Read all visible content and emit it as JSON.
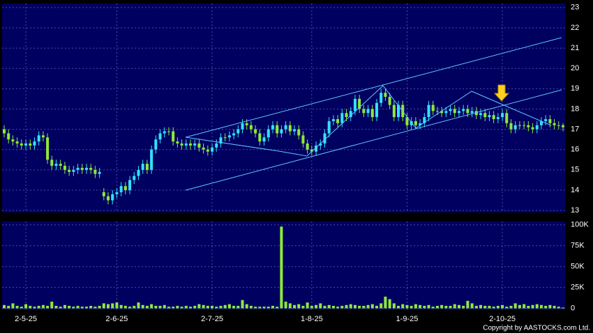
{
  "chart_data": {
    "type": "candlestick",
    "categories": [
      null,
      null,
      null,
      null,
      null,
      "2-5-25",
      null,
      null,
      null,
      null,
      null,
      null,
      null,
      null,
      null,
      null,
      null,
      null,
      null,
      null,
      null,
      null,
      null,
      null,
      null,
      null,
      "2-6-25",
      null,
      null,
      null,
      null,
      null,
      null,
      null,
      null,
      null,
      null,
      null,
      null,
      null,
      null,
      null,
      null,
      null,
      null,
      null,
      null,
      null,
      "2-7-25",
      null,
      null,
      null,
      null,
      null,
      null,
      null,
      null,
      null,
      null,
      null,
      null,
      null,
      null,
      null,
      null,
      null,
      null,
      null,
      null,
      null,
      null,
      "1-8-25",
      null,
      null,
      null,
      null,
      null,
      null,
      null,
      null,
      null,
      null,
      null,
      null,
      null,
      null,
      null,
      null,
      null,
      null,
      null,
      null,
      null,
      "1-9-25",
      null,
      null,
      null,
      null,
      null,
      null,
      null,
      null,
      null,
      null,
      null,
      null,
      null,
      null,
      null,
      null,
      null,
      null,
      null,
      null,
      null,
      "2-10-25",
      null,
      null,
      null,
      null,
      null,
      null,
      null,
      null,
      null,
      null,
      null,
      null,
      null,
      null
    ],
    "open": [
      17.0,
      16.8,
      16.5,
      16.4,
      16.3,
      16.2,
      16.3,
      16.2,
      16.4,
      16.7,
      16.6,
      15.5,
      15.2,
      15.3,
      15.2,
      15.0,
      14.9,
      15.0,
      15.1,
      15.0,
      15.1,
      15.0,
      14.8,
      13.9,
      13.7,
      13.5,
      13.8,
      13.9,
      14.2,
      14.0,
      14.5,
      14.7,
      15.0,
      15.3,
      15.0,
      16.0,
      16.5,
      16.8,
      16.9,
      16.9,
      16.4,
      16.3,
      16.2,
      16.3,
      16.2,
      16.3,
      16.1,
      16.0,
      15.9,
      16.1,
      16.3,
      16.6,
      16.6,
      16.7,
      16.8,
      17.0,
      17.3,
      17.2,
      17.0,
      16.8,
      16.4,
      16.6,
      17.0,
      17.2,
      16.8,
      17.0,
      17.2,
      16.9,
      17.0,
      16.7,
      16.3,
      16.0,
      15.9,
      16.2,
      16.3,
      16.8,
      17.4,
      17.5,
      17.3,
      17.8,
      17.6,
      17.9,
      18.5,
      18.0,
      17.8,
      18.0,
      17.6,
      18.3,
      18.8,
      18.6,
      18.2,
      17.6,
      18.2,
      17.6,
      17.2,
      17.4,
      17.2,
      17.3,
      17.6,
      18.2,
      17.9,
      17.9,
      17.8,
      17.9,
      18.0,
      17.8,
      17.9,
      18.0,
      17.8,
      17.9,
      17.7,
      17.8,
      17.6,
      17.7,
      17.5,
      17.6,
      17.8,
      17.3,
      17.0,
      17.2,
      17.2,
      17.2,
      17.1,
      17.0,
      17.2,
      17.4,
      17.5,
      17.3,
      17.2,
      17.2
    ],
    "high": [
      17.2,
      17.0,
      16.7,
      16.6,
      16.5,
      16.5,
      16.5,
      16.6,
      16.9,
      16.9,
      16.8,
      15.7,
      15.5,
      15.5,
      15.4,
      15.2,
      15.2,
      15.3,
      15.3,
      15.3,
      15.3,
      15.2,
      15.1,
      14.1,
      13.9,
      14.0,
      14.1,
      14.4,
      14.4,
      14.7,
      14.9,
      15.2,
      15.5,
      15.5,
      16.2,
      16.7,
      17.0,
      17.1,
      17.1,
      17.1,
      16.6,
      16.5,
      16.5,
      16.5,
      16.5,
      16.5,
      16.3,
      16.2,
      16.3,
      16.5,
      16.8,
      16.8,
      16.9,
      17.0,
      17.2,
      17.5,
      17.5,
      17.4,
      17.2,
      17.0,
      16.8,
      17.2,
      17.4,
      17.4,
      17.2,
      17.4,
      17.4,
      17.2,
      17.2,
      16.9,
      16.5,
      16.2,
      16.4,
      16.5,
      17.0,
      17.6,
      17.7,
      17.7,
      18.0,
      18.0,
      18.1,
      18.7,
      18.7,
      18.2,
      18.2,
      18.2,
      18.5,
      19.0,
      19.0,
      18.8,
      18.4,
      18.4,
      18.4,
      17.8,
      17.6,
      17.6,
      17.5,
      17.8,
      18.4,
      18.4,
      18.1,
      18.1,
      18.1,
      18.2,
      18.2,
      18.1,
      18.2,
      18.2,
      18.1,
      18.1,
      18.0,
      18.0,
      17.9,
      17.9,
      17.8,
      18.0,
      18.0,
      17.5,
      17.4,
      17.4,
      17.4,
      17.4,
      17.3,
      17.4,
      17.6,
      17.7,
      17.7,
      17.5,
      17.4,
      17.3
    ],
    "low": [
      16.6,
      16.3,
      16.2,
      16.1,
      16.0,
      16.0,
      16.0,
      16.0,
      16.2,
      16.4,
      15.3,
      15.0,
      15.0,
      15.0,
      14.8,
      14.7,
      14.7,
      14.8,
      14.8,
      14.8,
      14.8,
      14.6,
      14.6,
      13.5,
      13.3,
      13.3,
      13.6,
      13.7,
      13.8,
      13.8,
      14.3,
      14.5,
      14.8,
      14.8,
      14.8,
      15.8,
      16.3,
      16.6,
      16.7,
      16.2,
      16.1,
      16.0,
      16.0,
      16.0,
      16.0,
      15.9,
      15.8,
      15.7,
      15.7,
      15.9,
      16.1,
      16.4,
      16.4,
      16.5,
      16.6,
      16.8,
      17.0,
      16.8,
      16.6,
      16.2,
      16.2,
      16.4,
      16.8,
      16.6,
      16.6,
      16.8,
      16.7,
      16.7,
      16.5,
      16.1,
      15.8,
      15.7,
      15.7,
      16.0,
      16.1,
      16.6,
      17.2,
      17.1,
      17.1,
      17.4,
      17.4,
      17.7,
      17.8,
      17.6,
      17.6,
      17.4,
      17.4,
      18.1,
      18.4,
      18.0,
      17.4,
      17.4,
      17.4,
      17.0,
      17.0,
      17.0,
      17.0,
      17.1,
      17.4,
      17.7,
      17.7,
      17.6,
      17.6,
      17.7,
      17.6,
      17.6,
      17.7,
      17.6,
      17.6,
      17.5,
      17.5,
      17.4,
      17.4,
      17.3,
      17.3,
      17.4,
      17.1,
      16.8,
      16.8,
      17.0,
      17.0,
      16.9,
      16.8,
      16.8,
      17.0,
      17.2,
      17.1,
      17.0,
      17.0,
      16.9
    ],
    "close": [
      16.8,
      16.5,
      16.4,
      16.3,
      16.2,
      16.3,
      16.2,
      16.4,
      16.7,
      16.6,
      15.5,
      15.2,
      15.3,
      15.2,
      15.0,
      14.9,
      15.0,
      15.1,
      15.0,
      15.1,
      15.0,
      14.8,
      14.9,
      13.7,
      13.5,
      13.8,
      13.9,
      14.2,
      14.0,
      14.5,
      14.7,
      15.0,
      15.3,
      15.0,
      16.0,
      16.5,
      16.8,
      16.9,
      16.9,
      16.4,
      16.3,
      16.2,
      16.3,
      16.2,
      16.3,
      16.1,
      16.0,
      15.9,
      16.1,
      16.3,
      16.6,
      16.6,
      16.7,
      16.8,
      17.0,
      17.3,
      17.2,
      17.0,
      16.8,
      16.4,
      16.6,
      17.0,
      17.2,
      16.8,
      17.0,
      17.2,
      16.9,
      17.0,
      16.7,
      16.3,
      16.0,
      15.9,
      16.2,
      16.3,
      16.8,
      17.4,
      17.5,
      17.3,
      17.8,
      17.6,
      17.9,
      18.5,
      18.0,
      17.8,
      18.0,
      17.6,
      18.3,
      18.8,
      18.6,
      18.2,
      17.6,
      18.2,
      17.6,
      17.2,
      17.4,
      17.2,
      17.3,
      17.6,
      18.2,
      17.9,
      17.9,
      17.8,
      17.9,
      18.0,
      17.8,
      17.9,
      18.0,
      17.8,
      17.9,
      17.7,
      17.8,
      17.6,
      17.7,
      17.5,
      17.6,
      17.8,
      17.3,
      17.0,
      17.2,
      17.2,
      17.2,
      17.1,
      17.0,
      17.2,
      17.4,
      17.5,
      17.3,
      17.2,
      17.2,
      17.1
    ],
    "volume": [
      4,
      3,
      6,
      3,
      2,
      5,
      3,
      2,
      3,
      4,
      3,
      8,
      3,
      2,
      4,
      3,
      2,
      3,
      2,
      2,
      3,
      2,
      3,
      6,
      5,
      6,
      7,
      4,
      3,
      2,
      3,
      7,
      4,
      3,
      5,
      3,
      3,
      4,
      2,
      2,
      3,
      2,
      3,
      2,
      3,
      5,
      4,
      3,
      3,
      2,
      3,
      4,
      5,
      3,
      3,
      10,
      5,
      3,
      2,
      2,
      2,
      2,
      3,
      2,
      98,
      8,
      6,
      4,
      5,
      3,
      7,
      3,
      4,
      6,
      3,
      4,
      3,
      2,
      3,
      4,
      5,
      4,
      3,
      3,
      4,
      5,
      3,
      6,
      14,
      11,
      6,
      3,
      5,
      4,
      3,
      5,
      4,
      3,
      4,
      2,
      3,
      4,
      3,
      3,
      5,
      4,
      3,
      9,
      6,
      3,
      4,
      3,
      3,
      2,
      3,
      4,
      2,
      3,
      6,
      4,
      5,
      3,
      4,
      5,
      4,
      3,
      4,
      3,
      2,
      1
    ],
    "up_color": "#33e0ff",
    "down_color": "#8ee83a",
    "volume_color": "#8ee83a",
    "ylim": [
      12.9,
      23.2
    ],
    "yticks": [
      13,
      14,
      15,
      16,
      17,
      18,
      19,
      20,
      21,
      22,
      23
    ],
    "volume_ylim": [
      -2,
      104
    ],
    "volume_yticks": [
      0,
      {
        "value": 25,
        "label": "25K"
      },
      {
        "value": 50,
        "label": "50K"
      },
      {
        "value": 75,
        "label": "75K"
      },
      {
        "value": 100,
        "label": "100K"
      }
    ],
    "grid": true,
    "copyright": "Copyright by AASTOCKS.com Ltd."
  }
}
